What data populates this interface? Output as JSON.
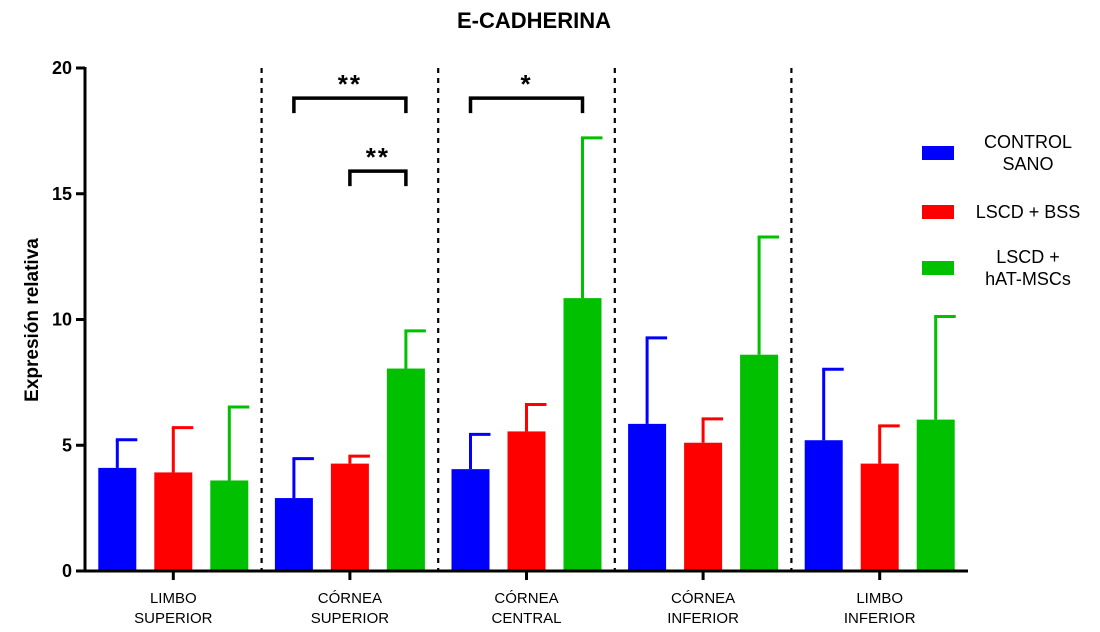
{
  "chart_data": {
    "type": "bar",
    "title": "E-CADHERINA",
    "ylabel": "Expresión relativa",
    "ylim": [
      0,
      20
    ],
    "yticks": [
      0,
      5,
      10,
      15,
      20
    ],
    "categories": [
      [
        "LIMBO",
        "SUPERIOR"
      ],
      [
        "CÓRNEA",
        "SUPERIOR"
      ],
      [
        "CÓRNEA",
        "CENTRAL"
      ],
      [
        "CÓRNEA",
        "INFERIOR"
      ],
      [
        "LIMBO",
        "INFERIOR"
      ]
    ],
    "series": [
      {
        "name": [
          "CONTROL",
          "SANO"
        ],
        "color": "#0000ff",
        "values": [
          4.1,
          2.9,
          4.05,
          5.85,
          5.2
        ],
        "error_upper": [
          5.22,
          4.47,
          5.43,
          9.27,
          8.02
        ]
      },
      {
        "name": [
          "LSCD + BSS"
        ],
        "color": "#ff0000",
        "values": [
          3.92,
          4.27,
          5.55,
          5.1,
          4.27
        ],
        "error_upper": [
          5.7,
          4.57,
          6.62,
          6.05,
          5.77
        ]
      },
      {
        "name": [
          "LSCD +",
          "hAT-MSCs"
        ],
        "color": "#00c000",
        "values": [
          3.6,
          8.05,
          10.85,
          8.6,
          6.02
        ],
        "error_upper": [
          6.52,
          9.55,
          17.22,
          13.28,
          10.12
        ]
      }
    ],
    "significance": [
      {
        "group": 1,
        "from_series": 0,
        "to_series": 2,
        "y": 18.8,
        "label": "**"
      },
      {
        "group": 1,
        "from_series": 1,
        "to_series": 2,
        "y": 15.9,
        "label": "**"
      },
      {
        "group": 2,
        "from_series": 0,
        "to_series": 2,
        "y": 18.8,
        "label": "*"
      }
    ],
    "separators": "dashed vertical lines between groups",
    "legend_position": "right"
  }
}
